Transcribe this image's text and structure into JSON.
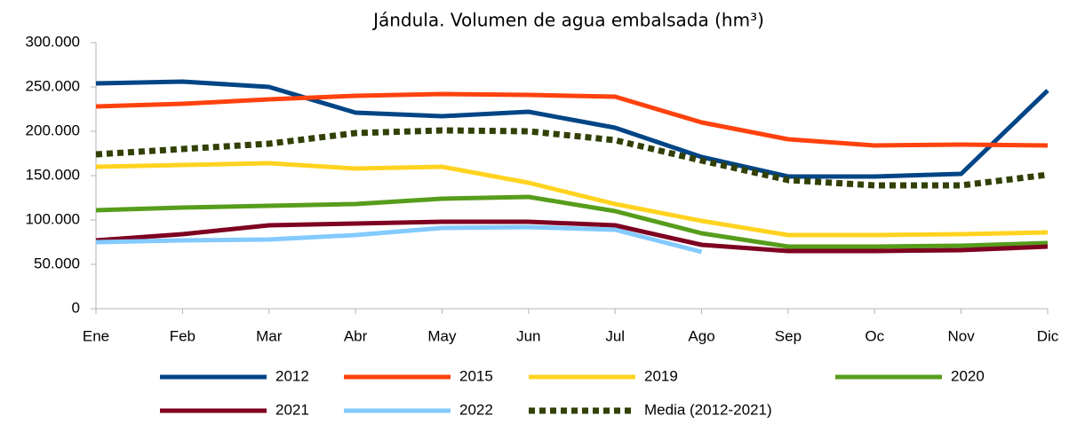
{
  "chart_data": {
    "type": "line",
    "title": "Jándula. Volumen de agua embalsada  (hm³)",
    "categories": [
      "Ene",
      "Feb",
      "Mar",
      "Abr",
      "May",
      "Jun",
      "Jul",
      "Ago",
      "Sep",
      "Oc",
      "Nov",
      "Dic"
    ],
    "ylim": [
      0,
      300000
    ],
    "yticks": [
      {
        "value": 0,
        "label": "0"
      },
      {
        "value": 50000,
        "label": "50.000"
      },
      {
        "value": 100000,
        "label": "100.000"
      },
      {
        "value": 150000,
        "label": "150.000"
      },
      {
        "value": 200000,
        "label": "200.000"
      },
      {
        "value": 250000,
        "label": "250.000"
      },
      {
        "value": 300000,
        "label": "300.000"
      }
    ],
    "grid": false,
    "series": [
      {
        "name": "2012",
        "color": "#004586",
        "values": [
          254000,
          256000,
          250000,
          221000,
          217000,
          222000,
          204000,
          171000,
          149000,
          149000,
          152000,
          246000
        ]
      },
      {
        "name": "2015",
        "color": "#ff420e",
        "values": [
          228000,
          231000,
          236000,
          240000,
          242000,
          241000,
          239000,
          210000,
          191000,
          184000,
          185000,
          184000
        ]
      },
      {
        "name": "2019",
        "color": "#ffd320",
        "values": [
          160000,
          162000,
          164000,
          158000,
          160000,
          142000,
          118000,
          99000,
          83000,
          83000,
          84000,
          86000
        ]
      },
      {
        "name": "2020",
        "color": "#579d1c",
        "values": [
          111000,
          114000,
          116000,
          118000,
          124000,
          126000,
          110000,
          85000,
          70000,
          70000,
          71000,
          74000
        ]
      },
      {
        "name": "2021",
        "color": "#7e0021",
        "values": [
          77000,
          84000,
          94000,
          96000,
          98000,
          98000,
          94000,
          72000,
          65000,
          65000,
          66000,
          70000
        ]
      },
      {
        "name": "2022",
        "color": "#83caff",
        "values": [
          75000,
          77000,
          78000,
          83000,
          91000,
          92000,
          89000,
          64000,
          null,
          null,
          null,
          null
        ]
      },
      {
        "name": "Media (2012-2021)",
        "color": "#314004",
        "dotted": true,
        "values": [
          174000,
          180000,
          186000,
          198000,
          201000,
          200000,
          190000,
          167000,
          145000,
          139000,
          139000,
          151000
        ]
      }
    ]
  }
}
